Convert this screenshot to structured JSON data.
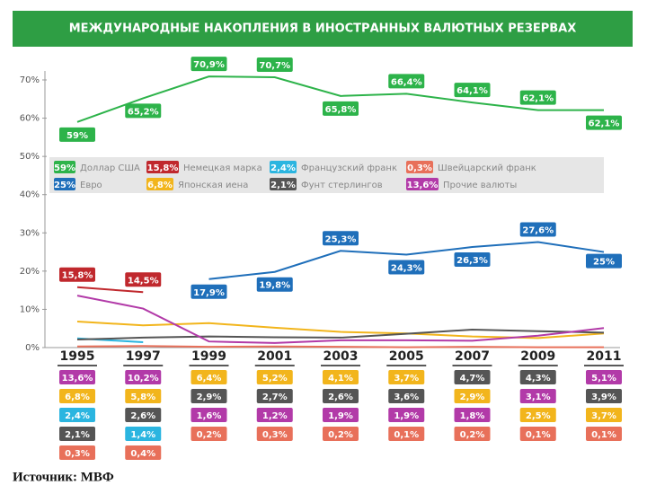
{
  "chart_data": {
    "type": "line",
    "title": "МЕЖДУНАРОДНЫЕ НАКОПЛЕНИЯ В ИНОСТРАННЫХ ВАЛЮТНЫХ РЕЗЕРВАХ",
    "source": "Источник: МВФ",
    "categories": [
      "1995",
      "1997",
      "1999",
      "2001",
      "2003",
      "2005",
      "2007",
      "2009",
      "2011"
    ],
    "ylim": [
      0,
      70
    ],
    "yticks": [
      {
        "value": 0,
        "label": "0%"
      },
      {
        "value": 10,
        "label": "10%"
      },
      {
        "value": 20,
        "label": "20%"
      },
      {
        "value": 30,
        "label": "30%"
      },
      {
        "value": 40,
        "label": "40%"
      },
      {
        "value": 50,
        "label": "50%"
      },
      {
        "value": 60,
        "label": "60%"
      },
      {
        "value": 70,
        "label": "70%"
      }
    ],
    "series": [
      {
        "name": "Доллар США",
        "legend_label": "59%",
        "color": "#2db34a",
        "values": [
          59,
          65.2,
          70.9,
          70.7,
          65.8,
          66.4,
          64.1,
          62.1,
          62.1
        ],
        "value_labels": [
          "59%",
          "65,2%",
          "70,9%",
          "70,7%",
          "65,8%",
          "66,4%",
          "64,1%",
          "62,1%",
          "62,1%"
        ]
      },
      {
        "name": "Немецкая марка",
        "legend_label": "15,8%",
        "color": "#c0282d",
        "values": [
          15.8,
          14.5,
          null,
          null,
          null,
          null,
          null,
          null,
          null
        ],
        "value_labels": [
          "15,8%",
          "14,5%",
          null,
          null,
          null,
          null,
          null,
          null,
          null
        ]
      },
      {
        "name": "Французский франк",
        "legend_label": "2,4%",
        "color": "#2bb5e0",
        "values": [
          2.4,
          1.4,
          null,
          null,
          null,
          null,
          null,
          null,
          null
        ],
        "value_labels": [
          "2,4%",
          "1,4%",
          null,
          null,
          null,
          null,
          null,
          null,
          null
        ]
      },
      {
        "name": "Швейцарский франк",
        "legend_label": "0,3%",
        "color": "#e8705a",
        "values": [
          0.3,
          0.4,
          0.2,
          0.3,
          0.2,
          0.1,
          0.2,
          0.1,
          0.1
        ],
        "value_labels": [
          "0,3%",
          "0,4%",
          "0,2%",
          "0,3%",
          "0,2%",
          "0,1%",
          "0,2%",
          "0,1%",
          "0,1%"
        ]
      },
      {
        "name": "Евро",
        "legend_label": "25%",
        "color": "#1f6fba",
        "values": [
          null,
          null,
          17.9,
          19.8,
          25.3,
          24.3,
          26.3,
          27.6,
          25
        ],
        "value_labels": [
          null,
          null,
          "17,9%",
          "19,8%",
          "25,3%",
          "24,3%",
          "26,3%",
          "27,6%",
          "25%"
        ]
      },
      {
        "name": "Японская иена",
        "legend_label": "6,8%",
        "color": "#f2b51c",
        "values": [
          6.8,
          5.8,
          6.4,
          5.2,
          4.1,
          3.7,
          2.9,
          2.5,
          3.7
        ],
        "value_labels": [
          "6,8%",
          "5,8%",
          "6,4%",
          "5,2%",
          "4,1%",
          "3,7%",
          "2,9%",
          "2,5%",
          "3,7%"
        ]
      },
      {
        "name": "Фунт стерлингов",
        "legend_label": "2,1%",
        "color": "#555555",
        "values": [
          2.1,
          2.6,
          2.9,
          2.7,
          2.6,
          3.6,
          4.7,
          4.3,
          3.9
        ],
        "value_labels": [
          "2,1%",
          "2,6%",
          "2,9%",
          "2,7%",
          "2,6%",
          "3,6%",
          "4,7%",
          "4,3%",
          "3,9%"
        ]
      },
      {
        "name": "Прочие валюты",
        "legend_label": "13,6%",
        "color": "#b23aa8",
        "values": [
          13.6,
          10.2,
          1.6,
          1.2,
          1.9,
          1.9,
          1.8,
          3.1,
          5.1
        ],
        "value_labels": [
          "13,6%",
          "10,2%",
          "1,6%",
          "1,2%",
          "1,9%",
          "1,9%",
          "1,8%",
          "3,1%",
          "5,1%"
        ]
      }
    ]
  }
}
